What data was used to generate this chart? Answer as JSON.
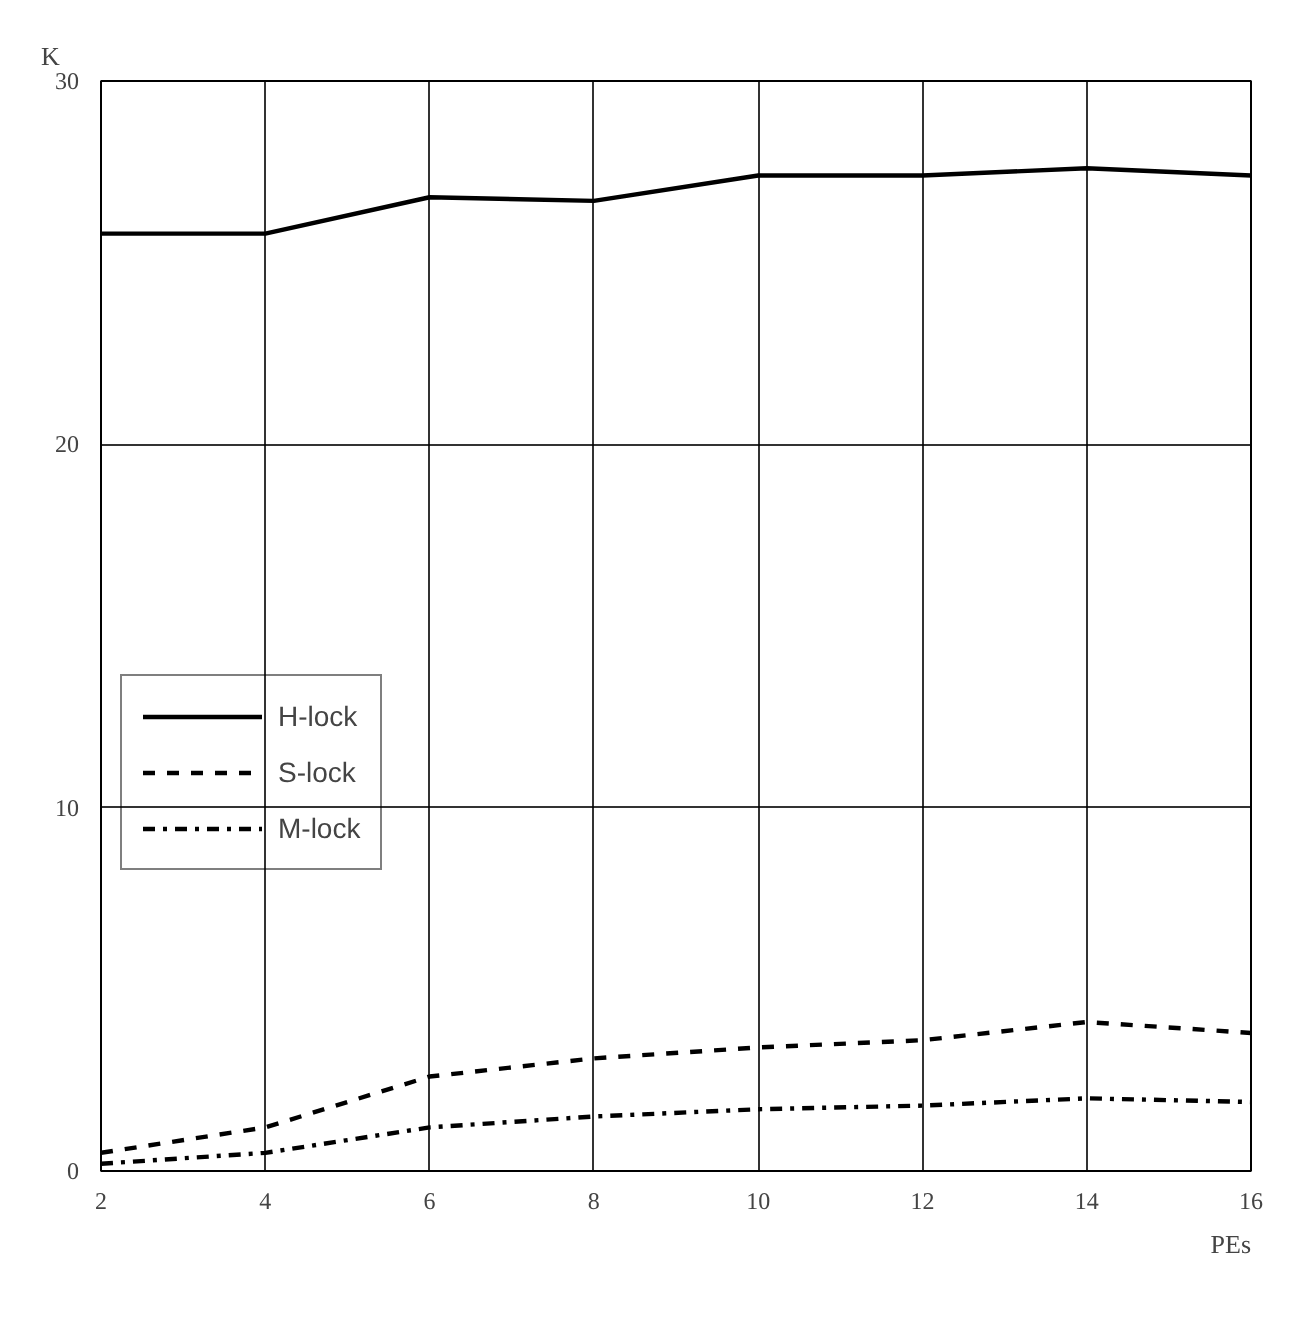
{
  "chart_data": {
    "type": "line",
    "xlabel": "PEs",
    "ylabel": "K",
    "x": [
      2,
      4,
      6,
      8,
      10,
      12,
      14,
      16
    ],
    "series": [
      {
        "name": "H-lock",
        "color": "#000000",
        "line_style": "solid",
        "values": [
          25.8,
          25.8,
          26.8,
          26.7,
          27.4,
          27.4,
          27.6,
          27.4
        ]
      },
      {
        "name": "S-lock",
        "color": "#000000",
        "line_style": "dashed",
        "values": [
          0.5,
          1.2,
          2.6,
          3.1,
          3.4,
          3.6,
          4.1,
          3.8
        ]
      },
      {
        "name": "M-lock",
        "color": "#000000",
        "line_style": "dashdot",
        "values": [
          0.2,
          0.5,
          1.2,
          1.5,
          1.7,
          1.8,
          2.0,
          1.9
        ]
      }
    ],
    "xlim": [
      2,
      16
    ],
    "ylim": [
      0,
      30
    ],
    "xticks": [
      2,
      4,
      6,
      8,
      10,
      12,
      14,
      16
    ],
    "yticks": [
      0,
      10,
      20,
      30
    ],
    "grid": true,
    "legend": "left",
    "marker": "none"
  }
}
